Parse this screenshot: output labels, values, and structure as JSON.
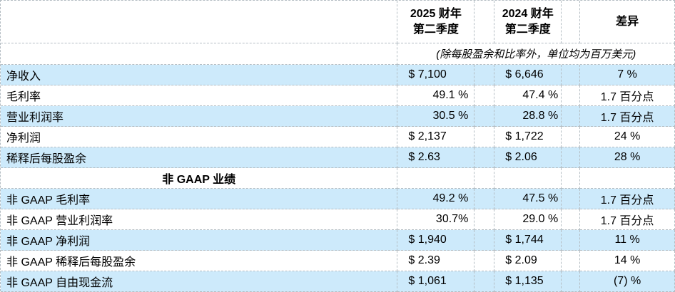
{
  "header": {
    "col2025": {
      "line1": "2025 财年",
      "line2": "第二季度"
    },
    "col2024": {
      "line1": "2024 财年",
      "line2": "第二季度"
    },
    "diff": "差异"
  },
  "subtitle": "(除每股盈余和比率外，单位均为百万美元)",
  "section_header": "非 GAAP 业绩",
  "rows": [
    {
      "label": "净收入",
      "fy2025_q2": "$ 7,100",
      "fy2024_q2": "$ 6,646",
      "diff": "7 %"
    },
    {
      "label": "毛利率",
      "fy2025_q2": "49.1 %",
      "fy2024_q2": "47.4 %",
      "diff": "1.7 百分点"
    },
    {
      "label": "营业利润率",
      "fy2025_q2": "30.5 %",
      "fy2024_q2": "28.8 %",
      "diff": "1.7 百分点"
    },
    {
      "label": "净利润",
      "fy2025_q2": "$ 2,137",
      "fy2024_q2": "$ 1,722",
      "diff": "24 %"
    },
    {
      "label": "稀释后每股盈余",
      "fy2025_q2": "$ 2.63",
      "fy2024_q2": "$ 2.06",
      "diff": "28 %"
    },
    {
      "label": "非 GAAP 毛利率",
      "fy2025_q2": "49.2 %",
      "fy2024_q2": "47.5 %",
      "diff": "1.7 百分点"
    },
    {
      "label": "非 GAAP 营业利润率",
      "fy2025_q2": "30.7%",
      "fy2024_q2": "29.0 %",
      "diff": "1.7 百分点"
    },
    {
      "label": "非 GAAP 净利润",
      "fy2025_q2": "$ 1,940",
      "fy2024_q2": "$ 1,744",
      "diff": "11 %"
    },
    {
      "label": "非 GAAP 稀释后每股盈余",
      "fy2025_q2": "$ 2.39",
      "fy2024_q2": "$ 2.09",
      "diff": "14 %"
    },
    {
      "label": "非 GAAP 自由现金流",
      "fy2025_q2": "$ 1,061",
      "fy2024_q2": "$ 1,135",
      "diff": "(7) %"
    }
  ],
  "colors": {
    "row_highlight": "#cdeafb",
    "border": "#b4bdc3",
    "text": "#000000"
  }
}
